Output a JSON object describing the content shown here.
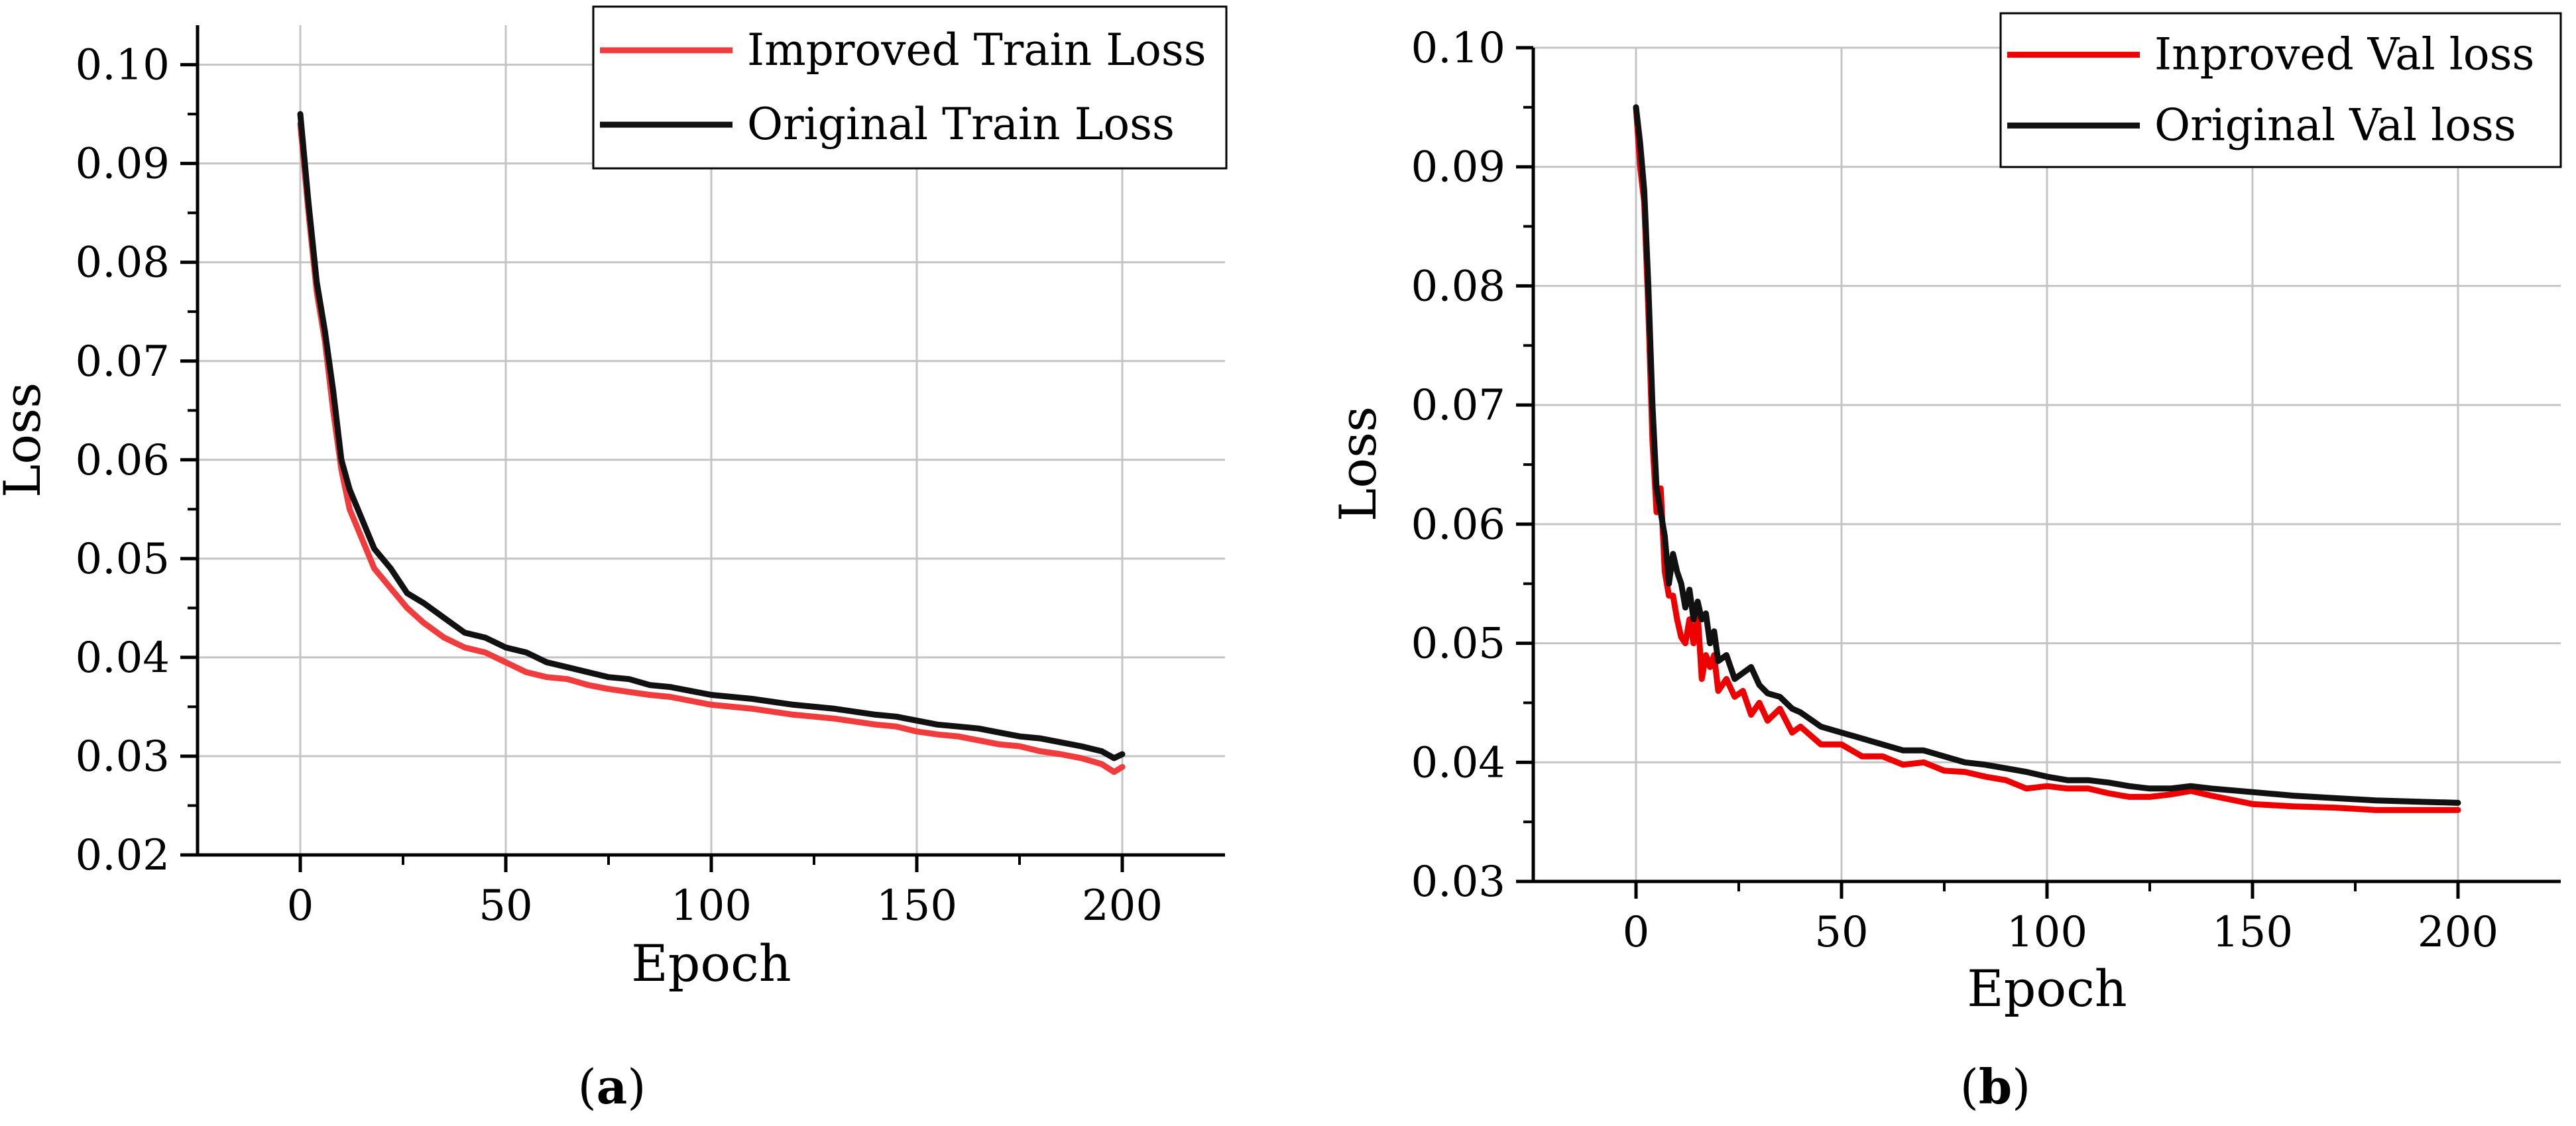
{
  "chart_data": [
    {
      "type": "line",
      "panel_label": {
        "open": "(",
        "letter": "a",
        "close": ")"
      },
      "title": "",
      "xlabel": "Epoch",
      "ylabel": "Loss",
      "xlim": [
        -25,
        225
      ],
      "ylim": [
        0.02,
        0.104
      ],
      "xticks": [
        0,
        50,
        100,
        150,
        200
      ],
      "yticks": [
        0.02,
        0.03,
        0.04,
        0.05,
        0.06,
        0.07,
        0.08,
        0.09,
        0.1
      ],
      "ytick_labels": [
        "0.02",
        "0.03",
        "0.04",
        "0.05",
        "0.06",
        "0.07",
        "0.08",
        "0.09",
        "0.10"
      ],
      "grid": true,
      "legend_position": "top-right",
      "series": [
        {
          "name": "Improved Train Loss",
          "color": "#f03c3c",
          "x": [
            0,
            2,
            4,
            6,
            8,
            10,
            12,
            15,
            18,
            22,
            26,
            30,
            35,
            40,
            45,
            50,
            55,
            60,
            65,
            70,
            75,
            80,
            85,
            90,
            95,
            100,
            105,
            110,
            115,
            120,
            125,
            130,
            135,
            140,
            145,
            150,
            155,
            160,
            165,
            170,
            175,
            180,
            185,
            190,
            195,
            198,
            200
          ],
          "values": [
            0.094,
            0.085,
            0.077,
            0.072,
            0.065,
            0.059,
            0.055,
            0.052,
            0.049,
            0.047,
            0.045,
            0.0435,
            0.042,
            0.041,
            0.0405,
            0.0395,
            0.0385,
            0.038,
            0.0378,
            0.0372,
            0.0368,
            0.0365,
            0.0362,
            0.036,
            0.0356,
            0.0352,
            0.035,
            0.0348,
            0.0345,
            0.0342,
            0.034,
            0.0338,
            0.0335,
            0.0332,
            0.033,
            0.0325,
            0.0322,
            0.032,
            0.0316,
            0.0312,
            0.031,
            0.0305,
            0.0302,
            0.0298,
            0.0292,
            0.0284,
            0.0289
          ]
        },
        {
          "name": "Original Train Loss",
          "color": "#111111",
          "x": [
            0,
            2,
            4,
            6,
            8,
            10,
            12,
            15,
            18,
            22,
            26,
            30,
            35,
            40,
            45,
            50,
            55,
            60,
            65,
            70,
            75,
            80,
            85,
            90,
            95,
            100,
            105,
            110,
            115,
            120,
            125,
            130,
            135,
            140,
            145,
            150,
            155,
            160,
            165,
            170,
            175,
            180,
            185,
            190,
            195,
            198,
            200
          ],
          "values": [
            0.095,
            0.086,
            0.078,
            0.073,
            0.067,
            0.06,
            0.057,
            0.054,
            0.051,
            0.049,
            0.0465,
            0.0455,
            0.044,
            0.0425,
            0.042,
            0.041,
            0.0405,
            0.0395,
            0.039,
            0.0385,
            0.038,
            0.0378,
            0.0372,
            0.037,
            0.0366,
            0.0362,
            0.036,
            0.0358,
            0.0355,
            0.0352,
            0.035,
            0.0348,
            0.0345,
            0.0342,
            0.034,
            0.0336,
            0.0332,
            0.033,
            0.0328,
            0.0324,
            0.032,
            0.0318,
            0.0314,
            0.031,
            0.0305,
            0.0298,
            0.0302
          ]
        }
      ]
    },
    {
      "type": "line",
      "panel_label": {
        "open": "(",
        "letter": "b",
        "close": ")"
      },
      "title": "",
      "xlabel": "Epoch",
      "ylabel": "Loss",
      "xlim": [
        -25,
        225
      ],
      "ylim": [
        0.03,
        0.1
      ],
      "xticks": [
        0,
        50,
        100,
        150,
        200
      ],
      "yticks": [
        0.03,
        0.04,
        0.05,
        0.06,
        0.07,
        0.08,
        0.09,
        0.1
      ],
      "ytick_labels": [
        "0.03",
        "0.04",
        "0.05",
        "0.06",
        "0.07",
        "0.08",
        "0.09",
        "0.10"
      ],
      "grid": true,
      "legend_position": "top-right",
      "series": [
        {
          "name": "Inproved Val loss",
          "color": "#ee0000",
          "x": [
            0,
            1,
            2,
            3,
            4,
            5,
            6,
            7,
            8,
            9,
            10,
            11,
            12,
            13,
            14,
            15,
            16,
            17,
            18,
            19,
            20,
            22,
            24,
            26,
            28,
            30,
            32,
            35,
            38,
            40,
            45,
            50,
            55,
            60,
            65,
            70,
            75,
            80,
            85,
            90,
            95,
            100,
            105,
            110,
            115,
            120,
            125,
            130,
            135,
            140,
            150,
            160,
            170,
            180,
            190,
            200
          ],
          "values": [
            0.095,
            0.09,
            0.087,
            0.078,
            0.067,
            0.061,
            0.063,
            0.056,
            0.054,
            0.054,
            0.052,
            0.0505,
            0.05,
            0.052,
            0.05,
            0.0525,
            0.047,
            0.049,
            0.048,
            0.049,
            0.046,
            0.047,
            0.0455,
            0.046,
            0.044,
            0.045,
            0.0435,
            0.0445,
            0.0425,
            0.043,
            0.0415,
            0.0415,
            0.0405,
            0.0405,
            0.0398,
            0.04,
            0.0393,
            0.0392,
            0.0388,
            0.0385,
            0.0378,
            0.038,
            0.0378,
            0.0378,
            0.0374,
            0.0371,
            0.0371,
            0.0373,
            0.0376,
            0.0372,
            0.0365,
            0.0363,
            0.0362,
            0.036,
            0.036,
            0.036
          ]
        },
        {
          "name": "Original Val loss",
          "color": "#111111",
          "x": [
            0,
            1,
            2,
            3,
            4,
            5,
            6,
            7,
            8,
            9,
            10,
            11,
            12,
            13,
            14,
            15,
            16,
            17,
            18,
            19,
            20,
            22,
            24,
            26,
            28,
            30,
            32,
            35,
            38,
            40,
            45,
            50,
            55,
            60,
            65,
            70,
            75,
            80,
            85,
            90,
            95,
            100,
            105,
            110,
            115,
            120,
            125,
            130,
            135,
            140,
            150,
            160,
            170,
            180,
            190,
            200
          ],
          "values": [
            0.095,
            0.092,
            0.088,
            0.08,
            0.07,
            0.063,
            0.061,
            0.059,
            0.055,
            0.0575,
            0.056,
            0.055,
            0.053,
            0.0545,
            0.052,
            0.0535,
            0.052,
            0.0525,
            0.05,
            0.051,
            0.0485,
            0.049,
            0.047,
            0.0475,
            0.048,
            0.0465,
            0.0458,
            0.0455,
            0.0445,
            0.0442,
            0.043,
            0.0425,
            0.042,
            0.0415,
            0.041,
            0.041,
            0.0405,
            0.04,
            0.0398,
            0.0395,
            0.0392,
            0.0388,
            0.0385,
            0.0385,
            0.0383,
            0.038,
            0.0378,
            0.0378,
            0.038,
            0.0378,
            0.0375,
            0.0372,
            0.037,
            0.0368,
            0.0367,
            0.0366
          ]
        }
      ]
    }
  ]
}
